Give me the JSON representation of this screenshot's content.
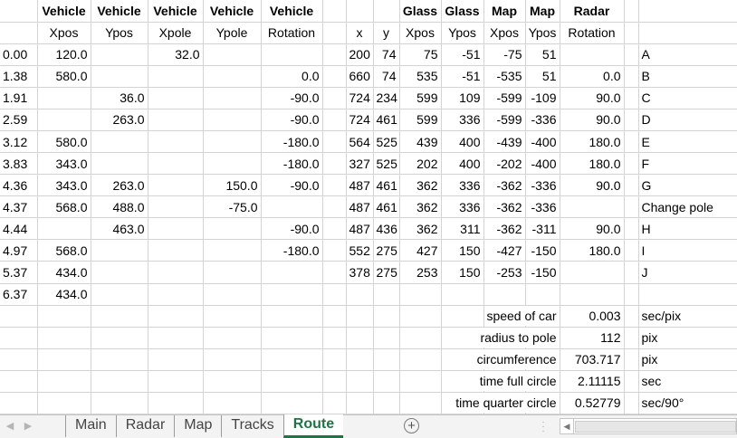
{
  "sheet": {
    "headers": {
      "row1": [
        "",
        "Vehicle",
        "Vehicle",
        "Vehicle",
        "Vehicle",
        "Vehicle",
        "",
        "",
        "",
        "Glass",
        "Glass",
        "Map",
        "Map",
        "Radar",
        "",
        ""
      ],
      "row2": [
        "",
        "Xpos",
        "Ypos",
        "Xpole",
        "Ypole",
        "Rotation",
        "",
        "x",
        "y",
        "Xpos",
        "Ypos",
        "Xpos",
        "Ypos",
        "Rotation",
        "",
        ""
      ]
    },
    "rows": [
      [
        "0.00",
        "120.0",
        "",
        "32.0",
        "",
        "",
        "",
        "200",
        "74",
        "75",
        "-51",
        "-75",
        "51",
        "",
        "",
        "A"
      ],
      [
        "1.38",
        "580.0",
        "",
        "",
        "",
        "0.0",
        "",
        "660",
        "74",
        "535",
        "-51",
        "-535",
        "51",
        "0.0",
        "",
        "B"
      ],
      [
        "1.91",
        "",
        "36.0",
        "",
        "",
        "-90.0",
        "",
        "724",
        "234",
        "599",
        "109",
        "-599",
        "-109",
        "90.0",
        "",
        "C"
      ],
      [
        "2.59",
        "",
        "263.0",
        "",
        "",
        "-90.0",
        "",
        "724",
        "461",
        "599",
        "336",
        "-599",
        "-336",
        "90.0",
        "",
        "D"
      ],
      [
        "3.12",
        "580.0",
        "",
        "",
        "",
        "-180.0",
        "",
        "564",
        "525",
        "439",
        "400",
        "-439",
        "-400",
        "180.0",
        "",
        "E"
      ],
      [
        "3.83",
        "343.0",
        "",
        "",
        "",
        "-180.0",
        "",
        "327",
        "525",
        "202",
        "400",
        "-202",
        "-400",
        "180.0",
        "",
        "F"
      ],
      [
        "4.36",
        "343.0",
        "263.0",
        "",
        "150.0",
        "-90.0",
        "",
        "487",
        "461",
        "362",
        "336",
        "-362",
        "-336",
        "90.0",
        "",
        "G"
      ],
      [
        "4.37",
        "568.0",
        "488.0",
        "",
        "-75.0",
        "",
        "",
        "487",
        "461",
        "362",
        "336",
        "-362",
        "-336",
        "",
        "",
        "Change pole"
      ],
      [
        "4.44",
        "",
        "463.0",
        "",
        "",
        "-90.0",
        "",
        "487",
        "436",
        "362",
        "311",
        "-362",
        "-311",
        "90.0",
        "",
        "H"
      ],
      [
        "4.97",
        "568.0",
        "",
        "",
        "",
        "-180.0",
        "",
        "552",
        "275",
        "427",
        "150",
        "-427",
        "-150",
        "180.0",
        "",
        "I"
      ],
      [
        "5.37",
        "434.0",
        "",
        "",
        "",
        "",
        "",
        "378",
        "275",
        "253",
        "150",
        "-253",
        "-150",
        "",
        "",
        "J"
      ],
      [
        "6.37",
        "434.0",
        "",
        "",
        "",
        "",
        "",
        "",
        "",
        "",
        "",
        "",
        "",
        "",
        "",
        ""
      ]
    ],
    "params": [
      {
        "label": "speed of car",
        "value": "0.003",
        "unit": "sec/pix"
      },
      {
        "label": "radius to pole",
        "value": "112",
        "unit": "pix"
      },
      {
        "label": "circumference",
        "value": "703.717",
        "unit": "pix"
      },
      {
        "label": "time full circle",
        "value": "2.11115",
        "unit": "sec"
      },
      {
        "label": "time quarter circle",
        "value": "0.52779",
        "unit": "sec/90°"
      }
    ]
  },
  "tabs": [
    {
      "label": "Main",
      "active": false
    },
    {
      "label": "Radar",
      "active": false
    },
    {
      "label": "Map",
      "active": false
    },
    {
      "label": "Tracks",
      "active": false
    },
    {
      "label": "Route",
      "active": true
    }
  ],
  "icons": {
    "nav_prev": "nav-prev-icon",
    "nav_next": "nav-next-icon",
    "add_sheet": "plus-circle-icon",
    "split_handle": "vertical-ellipsis-icon",
    "scroll_left": "chevron-left-icon"
  },
  "colors": {
    "active_tab": "#217346",
    "gridline": "#d4d4d4"
  }
}
